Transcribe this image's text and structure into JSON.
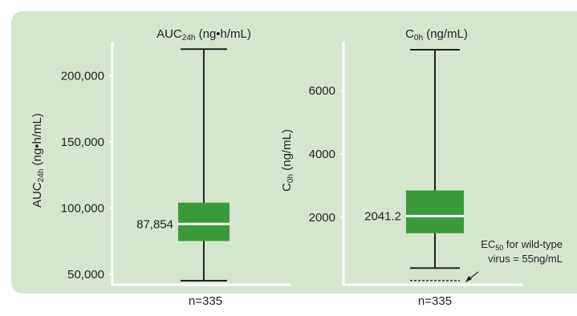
{
  "chart_data": [
    {
      "type": "box",
      "title": {
        "main": "AUC",
        "sub": "24h",
        "rest": " (ng•h/mL)"
      },
      "ylabel": {
        "main": "AUC",
        "sub": "24h",
        "rest": " (ng•h/mL)"
      },
      "yticks": [
        50000,
        100000,
        150000,
        200000
      ],
      "ytick_labels": [
        "50,000",
        "100,000",
        "150,000",
        "200,000"
      ],
      "ylim": [
        45000,
        222000
      ],
      "box": {
        "whisker_low": 45000,
        "q1": 75000,
        "median": 87854,
        "q3": 104000,
        "whisker_high": 220000
      },
      "median_label": "87,854",
      "n_label": "n=335"
    },
    {
      "type": "box",
      "title": {
        "main": "C",
        "sub": "0h",
        "rest": " (ng/mL)"
      },
      "ylabel": {
        "main": "C",
        "sub": "0h",
        "rest": " (ng/mL)"
      },
      "yticks": [
        2000,
        4000,
        6000
      ],
      "ytick_labels": [
        "2000",
        "4000",
        "6000"
      ],
      "ylim": [
        0,
        7400
      ],
      "box": {
        "whisker_low": 400,
        "q1": 1500,
        "median": 2041.2,
        "q3": 2850,
        "whisker_high": 7300
      },
      "median_label": "2041.2",
      "n_label": "n=335",
      "reference_line": {
        "value": 55,
        "label_line1_main": "EC",
        "label_line1_sub": "50",
        "label_line1_rest": " for wild-type",
        "label_line2": "virus = 55ng/mL"
      }
    }
  ],
  "colors": {
    "panel": "#d5e6cf",
    "box": "#3a9a3a",
    "median": "#ffffff",
    "line": "#222222",
    "axis": "#ffffff"
  }
}
